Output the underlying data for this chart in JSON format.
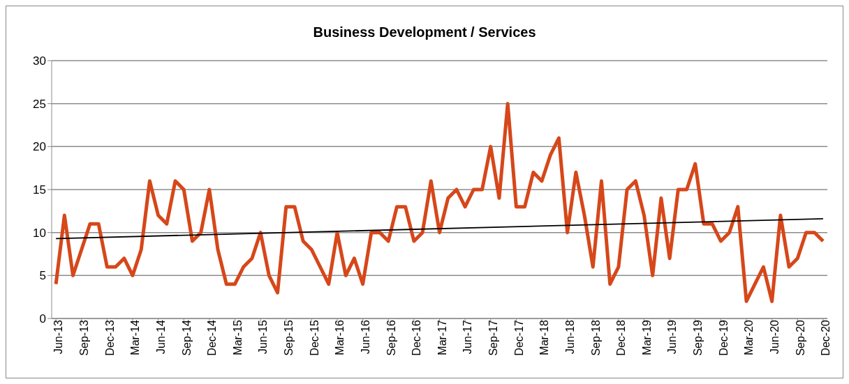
{
  "chart_data": {
    "type": "line",
    "title": "Business Development / Services",
    "categories": [
      "Jun-13",
      null,
      null,
      "Sep-13",
      null,
      null,
      "Dec-13",
      null,
      null,
      "Mar-14",
      null,
      null,
      "Jun-14",
      null,
      null,
      "Sep-14",
      null,
      null,
      "Dec-14",
      null,
      null,
      "Mar-15",
      null,
      null,
      "Jun-15",
      null,
      null,
      "Sep-15",
      null,
      null,
      "Dec-15",
      null,
      null,
      "Mar-16",
      null,
      null,
      "Jun-16",
      null,
      null,
      "Sep-16",
      null,
      null,
      "Dec-16",
      null,
      null,
      "Mar-17",
      null,
      null,
      "Jun-17",
      null,
      null,
      "Sep-17",
      null,
      null,
      "Dec-17",
      null,
      null,
      "Mar-18",
      null,
      null,
      "Jun-18",
      null,
      null,
      "Sep-18",
      null,
      null,
      "Dec-18",
      null,
      null,
      "Mar-19",
      null,
      null,
      "Jun-19",
      null,
      null,
      "Sep-19",
      null,
      null,
      "Dec-19",
      null,
      null,
      "Mar-20",
      null,
      null,
      "Jun-20",
      null,
      null,
      "Sep-20",
      null,
      null,
      "Dec-20"
    ],
    "series": [
      {
        "color": "#d6471a",
        "values": [
          4,
          12,
          5,
          8,
          11,
          11,
          6,
          6,
          7,
          5,
          8,
          16,
          12,
          11,
          16,
          15,
          9,
          10,
          15,
          8,
          4,
          4,
          6,
          7,
          10,
          5,
          3,
          13,
          13,
          9,
          8,
          6,
          4,
          10,
          5,
          7,
          4,
          10,
          10,
          9,
          13,
          13,
          9,
          10,
          16,
          10,
          14,
          15,
          13,
          15,
          15,
          20,
          14,
          25,
          13,
          13,
          17,
          16,
          19,
          21,
          10,
          17,
          12,
          6,
          16,
          4,
          6,
          15,
          16,
          12,
          5,
          14,
          7,
          15,
          15,
          18,
          11,
          11,
          9,
          10,
          13,
          2,
          4,
          6,
          2,
          12,
          6,
          7,
          10,
          10,
          9
        ]
      },
      {
        "type": "line",
        "color": "#000000",
        "x": [
          "Jun-13",
          "Dec-20"
        ],
        "values": [
          9.3,
          11.6
        ]
      }
    ],
    "ylim": [
      0,
      30
    ],
    "yticks": [
      0,
      5,
      10,
      15,
      20,
      25,
      30
    ],
    "grid": "y",
    "legend": false,
    "marker": "none",
    "line_style": "solid"
  }
}
